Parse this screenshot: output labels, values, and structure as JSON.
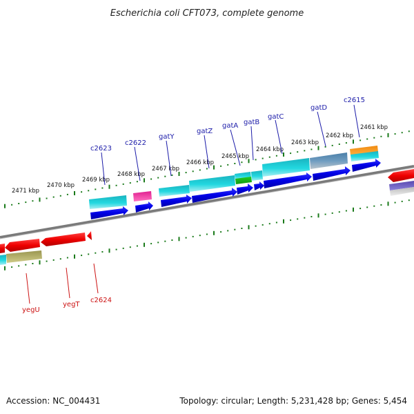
{
  "header": {
    "title": "Escherichia coli CFT073, complete genome"
  },
  "footer": {
    "accession": "Accession: NC_004431",
    "summary": "Topology: circular; Length: 5,231,428 bp; Genes: 5,454"
  },
  "ruler": {
    "labels": [
      "2471 kbp",
      "2470 kbp",
      "2469 kbp",
      "2468 kbp",
      "2467 kbp",
      "2466 kbp",
      "2465 kbp",
      "2464 kbp",
      "2463 kbp",
      "2462 kbp",
      "2461 kbp"
    ]
  },
  "genes": {
    "forward": [
      "c2623",
      "c2622",
      "gatY",
      "gatZ",
      "gatA",
      "gatB",
      "gatC",
      "gatD",
      "c2615"
    ],
    "reverse": [
      "yegU",
      "yegT",
      "c2624"
    ]
  },
  "colors": {
    "forward_cds": "#0a0ae6",
    "reverse_cds": "#ee0a0a",
    "blue_label": "#1a1aa8",
    "red_label": "#cc1111",
    "tick": "#1a7a1a",
    "backbone": "#808080"
  },
  "icons": [
    "gene-arrow-icon"
  ]
}
